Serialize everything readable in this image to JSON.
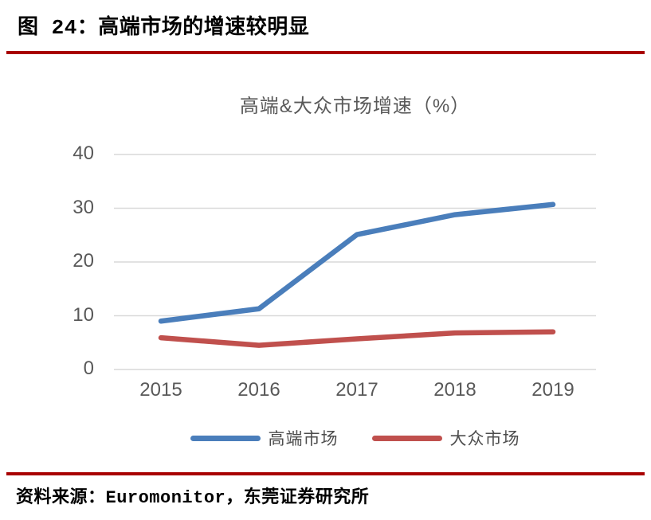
{
  "header": {
    "title": "图 24：高端市场的增速较明显"
  },
  "chart": {
    "title": "高端&大众市场增速（%）"
  },
  "chart_data": {
    "type": "line",
    "title": "高端&大众市场增速（%）",
    "categories": [
      "2015",
      "2016",
      "2017",
      "2018",
      "2019"
    ],
    "series": [
      {
        "name": "高端市场",
        "color": "#4A7EBB",
        "values": [
          9.0,
          11.3,
          25.1,
          28.8,
          30.7
        ]
      },
      {
        "name": "大众市场",
        "color": "#C0504D",
        "values": [
          5.9,
          4.5,
          5.7,
          6.8,
          7.0
        ]
      }
    ],
    "xlabel": "",
    "ylabel": "",
    "ylim": [
      0,
      40
    ],
    "yticks": [
      0,
      10,
      20,
      30,
      40
    ],
    "grid": true,
    "legend_position": "bottom"
  },
  "footer": {
    "source": "资料来源：Euromonitor，东莞证券研究所"
  },
  "colors": {
    "accent_rule": "#A80000",
    "grid": "#D9D9D9",
    "axis_text": "#595959",
    "series_blue": "#4A7EBB",
    "series_red": "#C0504D"
  }
}
